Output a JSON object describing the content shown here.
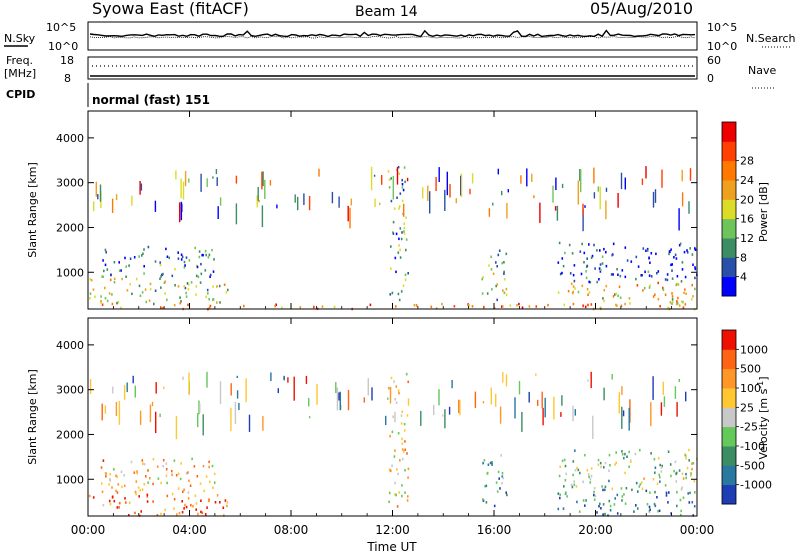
{
  "header": {
    "station": "Syowa East (fitACF)",
    "beam": "Beam 14",
    "date": "05/Aug/2010"
  },
  "noise_panel": {
    "left_label": "N.Sky",
    "right_label": "N.Search",
    "tick_top": "10^5",
    "tick_bottom": "10^0"
  },
  "freq_panel": {
    "label_line1": "Freq.",
    "label_line2": "[MHz]",
    "left_tick_top": "18",
    "left_tick_bottom": "8",
    "right_tick_top": "60",
    "right_tick_bottom": "0",
    "right_label": "Nave",
    "cpid_label": "CPID",
    "cpid_text": "normal (fast) 151"
  },
  "chart_data": [
    {
      "type": "heatmap",
      "name": "power",
      "xlabel": "Time UT",
      "ylabel": "Slant Range [km]",
      "xlim": [
        0,
        24
      ],
      "ylim": [
        180,
        4600
      ],
      "xticks": [
        "00:00",
        "04:00",
        "08:00",
        "12:00",
        "16:00",
        "20:00",
        "00:00"
      ],
      "yticks": [
        "1000",
        "2000",
        "3000",
        "4000"
      ],
      "colorbar_label": "Power [dB]",
      "colorbar_ticks": [
        "4",
        "8",
        "12",
        "16",
        "20",
        "24",
        "28"
      ],
      "colorbar_colors": [
        "#0000ff",
        "#2850a8",
        "#3c8c64",
        "#6ec45a",
        "#dcdc28",
        "#f0a020",
        "#ff7800",
        "#ff4000",
        "#ee0000"
      ],
      "echo_regions": [
        {
          "t": [
            0.0,
            24.0
          ],
          "r": [
            200,
            320
          ],
          "level": 0.75
        },
        {
          "t": [
            0.0,
            5.5
          ],
          "r": [
            320,
            900
          ],
          "level": 0.45
        },
        {
          "t": [
            0.5,
            5.0
          ],
          "r": [
            900,
            1600
          ],
          "level": 0.25
        },
        {
          "t": [
            11.8,
            12.6
          ],
          "r": [
            400,
            3400
          ],
          "level": 0.3
        },
        {
          "t": [
            15.5,
            16.5
          ],
          "r": [
            400,
            1600
          ],
          "level": 0.4
        },
        {
          "t": [
            18.5,
            24.0
          ],
          "r": [
            800,
            1700
          ],
          "level": 0.1
        },
        {
          "t": [
            18.5,
            24.0
          ],
          "r": [
            300,
            800
          ],
          "level": 0.55
        }
      ]
    },
    {
      "type": "heatmap",
      "name": "velocity",
      "xlabel": "Time UT",
      "ylabel": "Slant Range [km]",
      "xlim": [
        0,
        24
      ],
      "ylim": [
        180,
        4600
      ],
      "xticks": [
        "00:00",
        "04:00",
        "08:00",
        "12:00",
        "16:00",
        "20:00",
        "00:00"
      ],
      "yticks": [
        "1000",
        "2000",
        "3000",
        "4000"
      ],
      "colorbar_label": "Velocity [m s-1]",
      "colorbar_ticks": [
        "1000",
        "500",
        "100",
        "25",
        "-25",
        "-100",
        "-500",
        "-1000"
      ],
      "colorbar_colors": [
        "#1e3cb4",
        "#2878a0",
        "#3c8c64",
        "#64c85a",
        "#c8c8c8",
        "#ffc832",
        "#ff9628",
        "#ff6414",
        "#ee1000"
      ],
      "echo_regions": [
        {
          "t": [
            0.0,
            5.5
          ],
          "r": [
            200,
            700
          ],
          "level": 0.8
        },
        {
          "t": [
            0.5,
            5.0
          ],
          "r": [
            700,
            1500
          ],
          "level": 0.65
        },
        {
          "t": [
            11.8,
            12.6
          ],
          "r": [
            400,
            3400
          ],
          "level": 0.6
        },
        {
          "t": [
            15.5,
            16.5
          ],
          "r": [
            400,
            1600
          ],
          "level": 0.3
        },
        {
          "t": [
            18.5,
            24.0
          ],
          "r": [
            800,
            1700
          ],
          "level": 0.45
        },
        {
          "t": [
            18.5,
            24.0
          ],
          "r": [
            200,
            800
          ],
          "level": 0.2
        }
      ]
    }
  ]
}
